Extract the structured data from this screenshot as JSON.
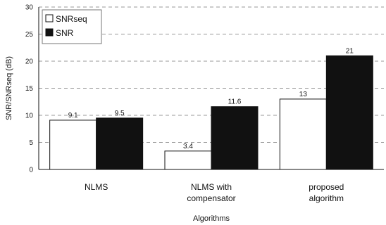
{
  "chart_data": {
    "type": "bar",
    "categories": [
      "NLMS",
      "NLMS with compensator",
      "proposed algorithm"
    ],
    "category_lines": [
      [
        "NLMS"
      ],
      [
        "NLMS with",
        "compensator"
      ],
      [
        "proposed",
        "algorithm"
      ]
    ],
    "series": [
      {
        "name": "SNRseq",
        "values": [
          9.1,
          3.4,
          13
        ],
        "labels": [
          "9.1",
          "3.4",
          "13"
        ],
        "color": "#ffffff"
      },
      {
        "name": "SNR",
        "values": [
          9.5,
          11.6,
          21
        ],
        "labels": [
          "9.5",
          "11.6",
          "21"
        ],
        "color": "#111111"
      }
    ],
    "xlabel": "Algorithms",
    "ylabel": "SNR/SNRseq (dB)",
    "ylim": [
      0,
      30
    ],
    "yticks": [
      0,
      5,
      10,
      15,
      20,
      25,
      30
    ],
    "grid": "horizontal-dashed",
    "legend_position": "top-left"
  }
}
